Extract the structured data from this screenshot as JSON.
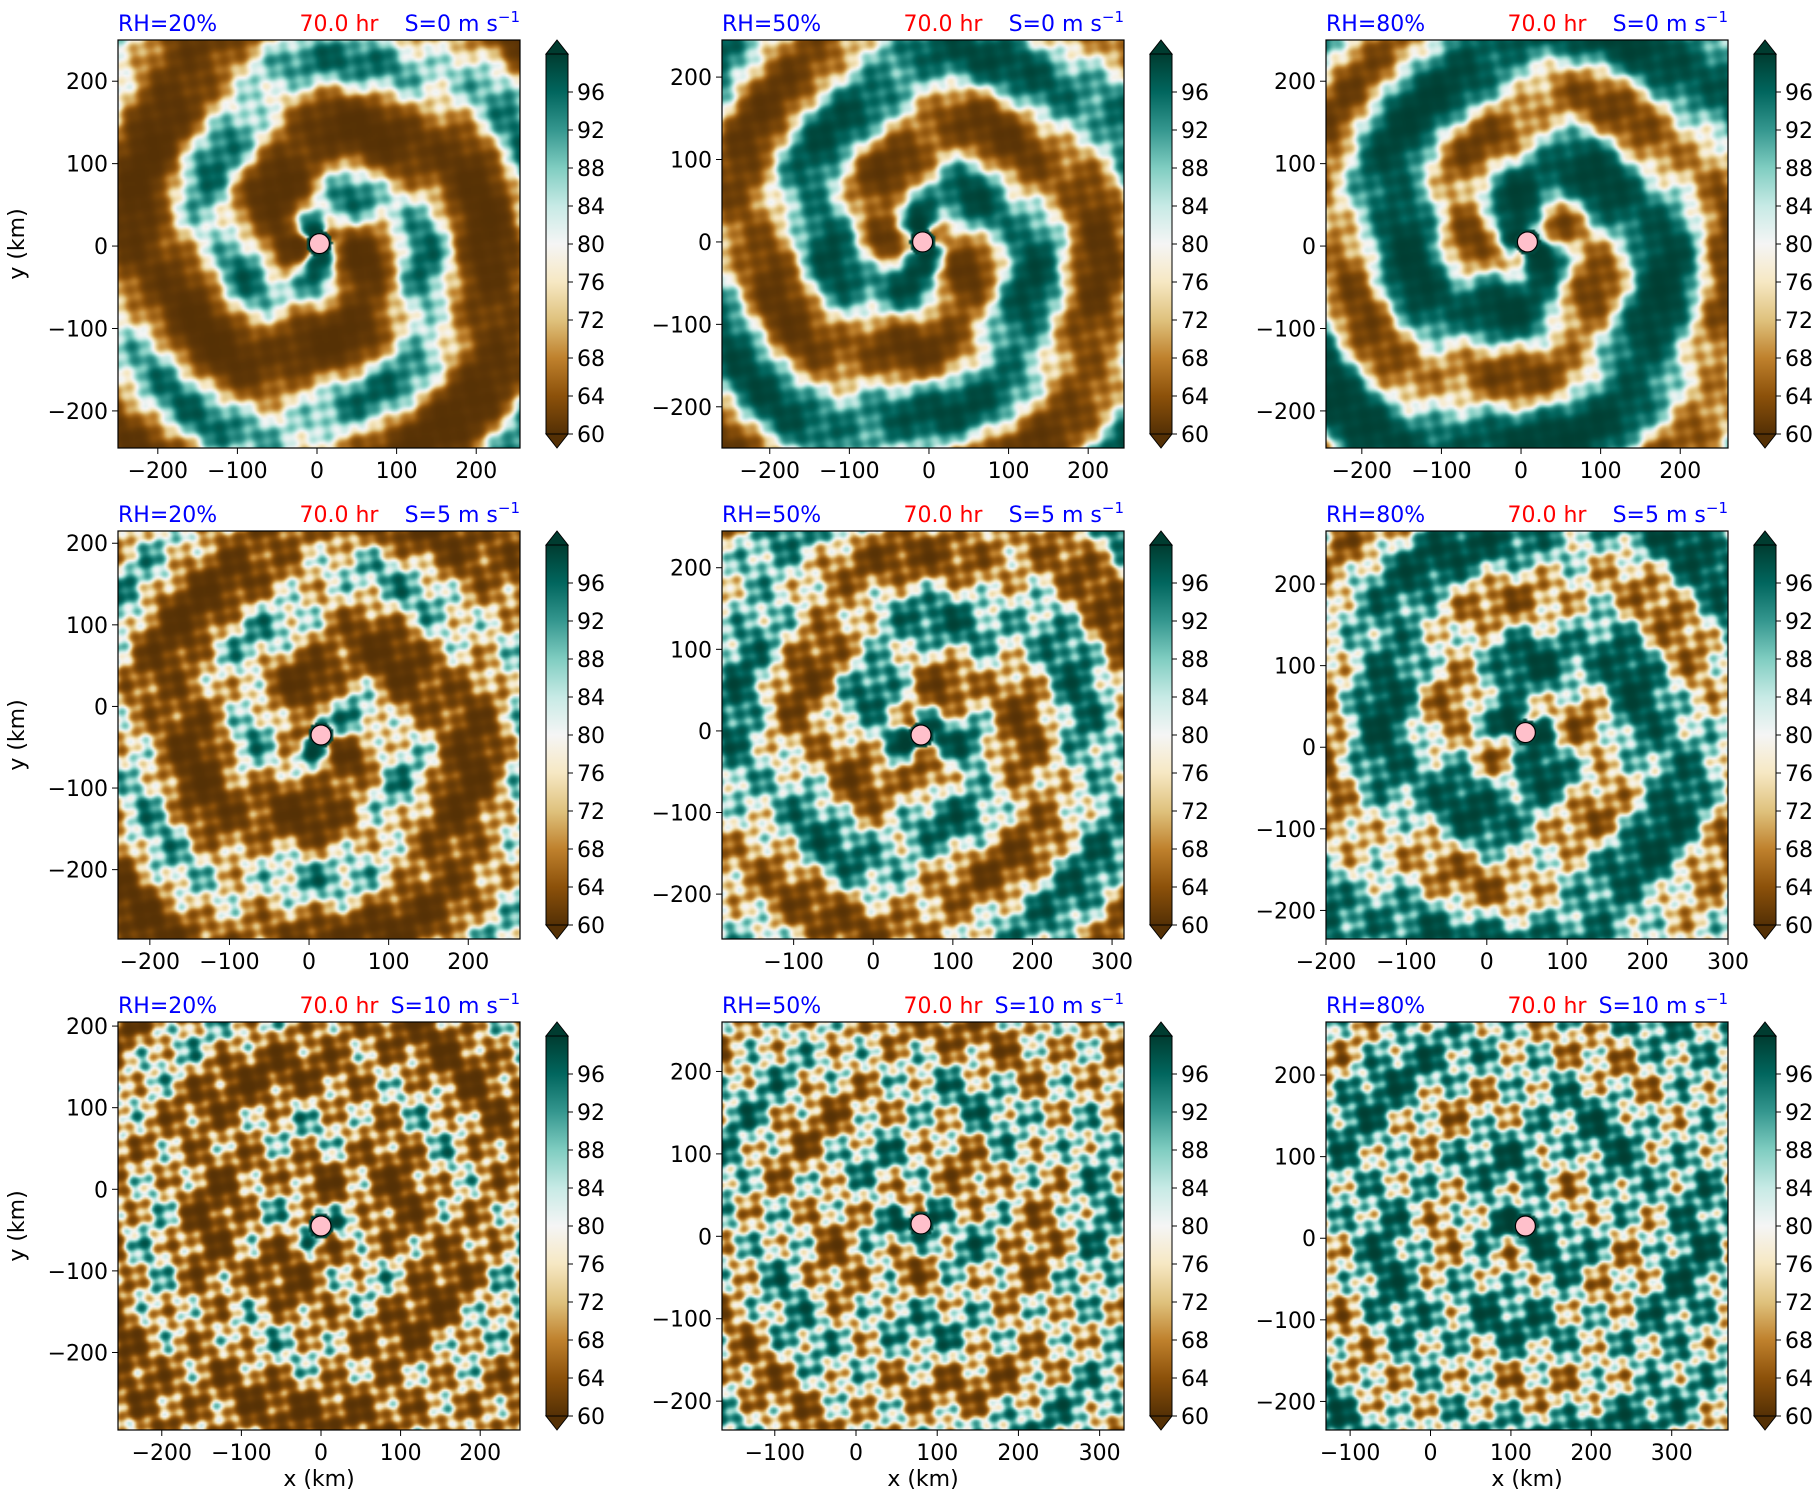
{
  "figure": {
    "colors": {
      "title_blue": "#0000ff",
      "title_red": "#ff0000",
      "center_marker": "#ffc0cb"
    },
    "colormap": {
      "name": "BrBG",
      "stops": [
        "#543005",
        "#8c510a",
        "#bf812d",
        "#dfc27d",
        "#f6e8c3",
        "#f5f5f5",
        "#c7eae5",
        "#80cdc1",
        "#35978f",
        "#01665e",
        "#003c30"
      ]
    }
  },
  "chart_data": [
    {
      "type": "heatmap",
      "panel": "RH20-S0",
      "title": {
        "rh": "RH=20%",
        "time": "70.0 hr",
        "shear": "S=0 m s",
        "shear_sup": "−1"
      },
      "xlim": [
        -250,
        255
      ],
      "ylim": [
        -245,
        250
      ],
      "xticks": [
        -200,
        -100,
        0,
        100,
        200
      ],
      "yticks": [
        -200,
        -100,
        0,
        100,
        200
      ],
      "xlabel": "",
      "ylabel": "y (km)",
      "center": [
        3,
        3
      ],
      "colorbar": {
        "ticks": [
          60,
          64,
          68,
          72,
          76,
          80,
          84,
          88,
          92,
          96
        ],
        "range": [
          60,
          100
        ],
        "extend": "both"
      }
    },
    {
      "type": "heatmap",
      "panel": "RH50-S0",
      "title": {
        "rh": "RH=50%",
        "time": "70.0 hr",
        "shear": "S=0 m s",
        "shear_sup": "−1"
      },
      "xlim": [
        -260,
        245
      ],
      "ylim": [
        -250,
        245
      ],
      "xticks": [
        -200,
        -100,
        0,
        100,
        200
      ],
      "yticks": [
        -200,
        -100,
        0,
        100,
        200
      ],
      "xlabel": "",
      "ylabel": "",
      "center": [
        -8,
        0
      ],
      "colorbar": {
        "ticks": [
          60,
          64,
          68,
          72,
          76,
          80,
          84,
          88,
          92,
          96
        ],
        "range": [
          60,
          100
        ],
        "extend": "both"
      }
    },
    {
      "type": "heatmap",
      "panel": "RH80-S0",
      "title": {
        "rh": "RH=80%",
        "time": "70.0 hr",
        "shear": "S=0 m s",
        "shear_sup": "−1"
      },
      "xlim": [
        -245,
        260
      ],
      "ylim": [
        -245,
        250
      ],
      "xticks": [
        -200,
        -100,
        0,
        100,
        200
      ],
      "yticks": [
        -200,
        -100,
        0,
        100,
        200
      ],
      "xlabel": "",
      "ylabel": "",
      "center": [
        8,
        5
      ],
      "colorbar": {
        "ticks": [
          60,
          64,
          68,
          72,
          76,
          80,
          84,
          88,
          92,
          96
        ],
        "range": [
          60,
          100
        ],
        "extend": "both"
      }
    },
    {
      "type": "heatmap",
      "panel": "RH20-S5",
      "title": {
        "rh": "RH=20%",
        "time": "70.0 hr",
        "shear": "S=5 m s",
        "shear_sup": "−1"
      },
      "xlim": [
        -240,
        265
      ],
      "ylim": [
        -285,
        215
      ],
      "xticks": [
        -200,
        -100,
        0,
        100,
        200
      ],
      "yticks": [
        -200,
        -100,
        0,
        100,
        200
      ],
      "xlabel": "",
      "ylabel": "y (km)",
      "center": [
        15,
        -35
      ],
      "colorbar": {
        "ticks": [
          60,
          64,
          68,
          72,
          76,
          80,
          84,
          88,
          92,
          96
        ],
        "range": [
          60,
          100
        ],
        "extend": "both"
      }
    },
    {
      "type": "heatmap",
      "panel": "RH50-S5",
      "title": {
        "rh": "RH=50%",
        "time": "70.0 hr",
        "shear": "S=5 m s",
        "shear_sup": "−1"
      },
      "xlim": [
        -190,
        315
      ],
      "ylim": [
        -255,
        245
      ],
      "xticks": [
        -100,
        0,
        100,
        200,
        300
      ],
      "yticks": [
        -200,
        -100,
        0,
        100,
        200
      ],
      "xlabel": "",
      "ylabel": "",
      "center": [
        60,
        -5
      ],
      "colorbar": {
        "ticks": [
          60,
          64,
          68,
          72,
          76,
          80,
          84,
          88,
          92,
          96
        ],
        "range": [
          60,
          100
        ],
        "extend": "both"
      }
    },
    {
      "type": "heatmap",
      "panel": "RH80-S5",
      "title": {
        "rh": "RH=80%",
        "time": "70.0 hr",
        "shear": "S=5 m s",
        "shear_sup": "−1"
      },
      "xlim": [
        -200,
        300
      ],
      "ylim": [
        -235,
        265
      ],
      "xticks": [
        -200,
        -100,
        0,
        100,
        200,
        300
      ],
      "yticks": [
        -200,
        -100,
        0,
        100,
        200
      ],
      "xlabel": "",
      "ylabel": "",
      "center": [
        48,
        18
      ],
      "colorbar": {
        "ticks": [
          60,
          64,
          68,
          72,
          76,
          80,
          84,
          88,
          92,
          96
        ],
        "range": [
          60,
          100
        ],
        "extend": "both"
      }
    },
    {
      "type": "heatmap",
      "panel": "RH20-S10",
      "title": {
        "rh": "RH=20%",
        "time": "70.0 hr",
        "shear": "S=10 m s",
        "shear_sup": "−1"
      },
      "xlim": [
        -255,
        250
      ],
      "ylim": [
        -295,
        205
      ],
      "xticks": [
        -200,
        -100,
        0,
        100,
        200
      ],
      "yticks": [
        -200,
        -100,
        0,
        100,
        200
      ],
      "xlabel": "x (km)",
      "ylabel": "y (km)",
      "center": [
        0,
        -45
      ],
      "colorbar": {
        "ticks": [
          60,
          64,
          68,
          72,
          76,
          80,
          84,
          88,
          92,
          96
        ],
        "range": [
          60,
          100
        ],
        "extend": "both"
      }
    },
    {
      "type": "heatmap",
      "panel": "RH50-S10",
      "title": {
        "rh": "RH=50%",
        "time": "70.0 hr",
        "shear": "S=10 m s",
        "shear_sup": "−1"
      },
      "xlim": [
        -165,
        330
      ],
      "ylim": [
        -235,
        260
      ],
      "xticks": [
        -100,
        0,
        100,
        200,
        300
      ],
      "yticks": [
        -200,
        -100,
        0,
        100,
        200
      ],
      "xlabel": "x (km)",
      "ylabel": "",
      "center": [
        80,
        15
      ],
      "colorbar": {
        "ticks": [
          60,
          64,
          68,
          72,
          76,
          80,
          84,
          88,
          92,
          96
        ],
        "range": [
          60,
          100
        ],
        "extend": "both"
      }
    },
    {
      "type": "heatmap",
      "panel": "RH80-S10",
      "title": {
        "rh": "RH=80%",
        "time": "70.0 hr",
        "shear": "S=10 m s",
        "shear_sup": "−1"
      },
      "xlim": [
        -130,
        370
      ],
      "ylim": [
        -235,
        265
      ],
      "xticks": [
        -100,
        0,
        100,
        200,
        300
      ],
      "yticks": [
        -200,
        -100,
        0,
        100,
        200
      ],
      "xlabel": "x (km)",
      "ylabel": "",
      "center": [
        118,
        15
      ],
      "colorbar": {
        "ticks": [
          60,
          64,
          68,
          72,
          76,
          80,
          84,
          88,
          92,
          96
        ],
        "range": [
          60,
          100
        ],
        "extend": "both"
      }
    }
  ]
}
